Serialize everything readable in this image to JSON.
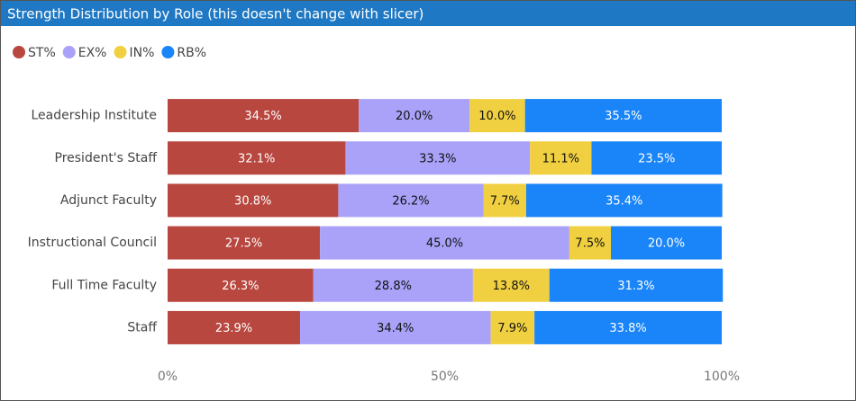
{
  "chart_data": {
    "type": "stacked_bar_horizontal_100",
    "title": "Strength Distribution by Role (this doesn't change with slicer)",
    "categories": [
      "Leadership Institute",
      "President's Staff",
      "Adjunct Faculty",
      "Instructional Council",
      "Full Time Faculty",
      "Staff"
    ],
    "series": [
      {
        "name": "ST%",
        "color": "#b8473f",
        "values": [
          34.5,
          32.1,
          30.8,
          27.5,
          26.3,
          23.9
        ],
        "value_labels": [
          "34.5%",
          "32.1%",
          "30.8%",
          "27.5%",
          "26.3%",
          "23.9%"
        ]
      },
      {
        "name": "EX%",
        "color": "#a9a2f8",
        "values": [
          20,
          33.3,
          26.2,
          45,
          28.8,
          34.4
        ],
        "value_labels": [
          "20.0%",
          "33.3%",
          "26.2%",
          "45.0%",
          "28.8%",
          "34.4%"
        ]
      },
      {
        "name": "IN%",
        "color": "#f0d040",
        "values": [
          10,
          11.1,
          7.7,
          7.5,
          13.8,
          7.9
        ],
        "value_labels": [
          "10.0%",
          "11.1%",
          "7.7%",
          "7.5%",
          "13.8%",
          "7.9%"
        ]
      },
      {
        "name": "RB%",
        "color": "#1a85f8",
        "values": [
          35.5,
          23.5,
          35.4,
          20,
          31.3,
          33.8
        ],
        "value_labels": [
          "35.5%",
          "23.5%",
          "35.4%",
          "20.0%",
          "31.3%",
          "33.8%"
        ]
      }
    ],
    "xlim": [
      0,
      100
    ],
    "xticks": [
      {
        "value": 0,
        "label": "0%"
      },
      {
        "value": 50,
        "label": "50%"
      },
      {
        "value": 100,
        "label": "100%"
      }
    ],
    "legend": "top-left",
    "grid": false
  }
}
